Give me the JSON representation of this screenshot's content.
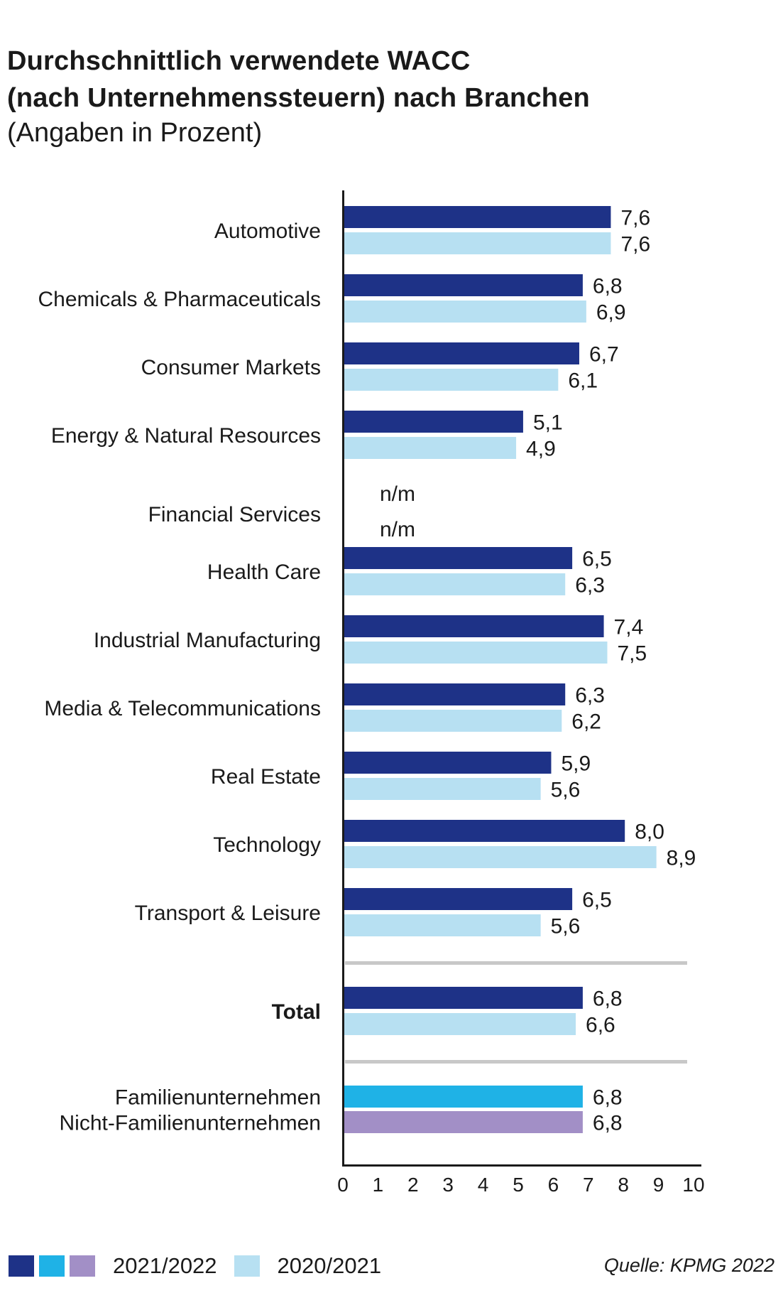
{
  "title_line1": "Durchschnittlich verwendete WACC",
  "title_line2": "(nach Unternehmenssteuern) nach Branchen",
  "subtitle": "(Angaben in Prozent)",
  "source": "Quelle: KPMG 2022",
  "colors": {
    "current": "#1e3287",
    "previous": "#b7e0f2",
    "family": "#1fb2e6",
    "nonfamily": "#a28fc6",
    "axis": "#1a1a1a",
    "separator": "#c8c8c8"
  },
  "chart_data": {
    "type": "bar",
    "orientation": "horizontal",
    "xlim": [
      0,
      10
    ],
    "xticks": [
      "0",
      "1",
      "2",
      "3",
      "4",
      "5",
      "6",
      "7",
      "8",
      "9",
      "10"
    ],
    "legend": {
      "placement": "bottom-left",
      "entries": [
        {
          "label": "2021/2022",
          "colors": [
            "#1e3287",
            "#1fb2e6",
            "#a28fc6"
          ]
        },
        {
          "label": "2020/2021",
          "colors": [
            "#b7e0f2"
          ]
        }
      ]
    },
    "categories": [
      {
        "label": "Automotive",
        "bars": [
          {
            "value": 7.6,
            "text": "7,6",
            "color": "current"
          },
          {
            "value": 7.6,
            "text": "7,6",
            "color": "previous"
          }
        ]
      },
      {
        "label": "Chemicals & Pharmaceuticals",
        "bars": [
          {
            "value": 6.8,
            "text": "6,8",
            "color": "current"
          },
          {
            "value": 6.9,
            "text": "6,9",
            "color": "previous"
          }
        ]
      },
      {
        "label": "Consumer Markets",
        "bars": [
          {
            "value": 6.7,
            "text": "6,7",
            "color": "current"
          },
          {
            "value": 6.1,
            "text": "6,1",
            "color": "previous"
          }
        ]
      },
      {
        "label": "Energy & Natural Resources",
        "bars": [
          {
            "value": 5.1,
            "text": "5,1",
            "color": "current"
          },
          {
            "value": 4.9,
            "text": "4,9",
            "color": "previous"
          }
        ]
      },
      {
        "label": "Financial Services",
        "bars": [
          {
            "value": null,
            "text": "n/m",
            "color": "current"
          },
          {
            "value": null,
            "text": "n/m",
            "color": "previous"
          }
        ]
      },
      {
        "label": "Health Care",
        "bars": [
          {
            "value": 6.5,
            "text": "6,5",
            "color": "current"
          },
          {
            "value": 6.3,
            "text": "6,3",
            "color": "previous"
          }
        ]
      },
      {
        "label": "Industrial Manufacturing",
        "bars": [
          {
            "value": 7.4,
            "text": "7,4",
            "color": "current"
          },
          {
            "value": 7.5,
            "text": "7,5",
            "color": "previous"
          }
        ]
      },
      {
        "label": "Media & Telecommunications",
        "bars": [
          {
            "value": 6.3,
            "text": "6,3",
            "color": "current"
          },
          {
            "value": 6.2,
            "text": "6,2",
            "color": "previous"
          }
        ]
      },
      {
        "label": "Real Estate",
        "bars": [
          {
            "value": 5.9,
            "text": "5,9",
            "color": "current"
          },
          {
            "value": 5.6,
            "text": "5,6",
            "color": "previous"
          }
        ]
      },
      {
        "label": "Technology",
        "bars": [
          {
            "value": 8.0,
            "text": "8,0",
            "color": "current"
          },
          {
            "value": 8.9,
            "text": "8,9",
            "color": "previous"
          }
        ]
      },
      {
        "label": "Transport & Leisure",
        "bars": [
          {
            "value": 6.5,
            "text": "6,5",
            "color": "current"
          },
          {
            "value": 5.6,
            "text": "5,6",
            "color": "previous"
          }
        ]
      },
      {
        "label": "Total",
        "bold": true,
        "bars": [
          {
            "value": 6.8,
            "text": "6,8",
            "color": "current"
          },
          {
            "value": 6.6,
            "text": "6,6",
            "color": "previous"
          }
        ]
      },
      {
        "label": "Familienunternehmen",
        "bars": [
          {
            "value": 6.8,
            "text": "6,8",
            "color": "family"
          }
        ]
      },
      {
        "label": "Nicht-Familienunternehmen",
        "bars": [
          {
            "value": 6.8,
            "text": "6,8",
            "color": "nonfamily"
          }
        ]
      }
    ]
  }
}
